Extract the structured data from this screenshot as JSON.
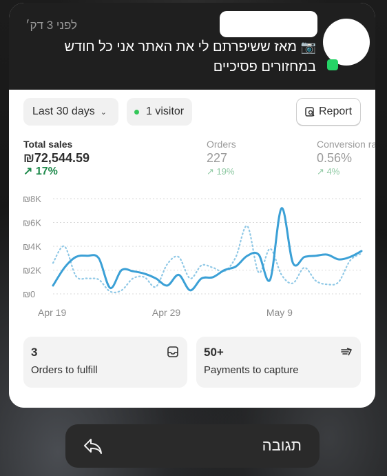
{
  "notification": {
    "time": "לפני 3 דק׳",
    "message_line1": "מאז ששיפרתם לי את האתר אני כל חודש",
    "message_line2": "במחזורים פסיכיים",
    "camera_emoji": "📷",
    "app_badge_icon": "whatsapp-icon"
  },
  "dashboard": {
    "date_range": "Last 30 days",
    "visitors": "1 visitor",
    "report_label": "Report",
    "metrics": {
      "total_sales": {
        "label": "Total sales",
        "value": "₪72,544.59",
        "change": "↗ 17%"
      },
      "orders": {
        "label": "Orders",
        "value": "227",
        "change": "↗ 19%"
      },
      "conversion": {
        "label": "Conversion rate",
        "value": "0.56%",
        "change": "↗ 4%"
      }
    },
    "cards": [
      {
        "value": "3",
        "label": "Orders to fulfill",
        "icon": "inbox-icon"
      },
      {
        "value": "50+",
        "label": "Payments to capture",
        "icon": "payment-icon"
      }
    ],
    "colors": {
      "accent": "#3ba0d6",
      "positive": "#1f8a4c",
      "visitor_dot": "#34c759"
    }
  },
  "chart_data": {
    "type": "line",
    "ylim": [
      0,
      8000
    ],
    "y_ticks": [
      "₪0",
      "₪2K",
      "₪4K",
      "₪6K",
      "₪8K"
    ],
    "x_ticks": [
      {
        "label": "Apr 19",
        "index": 0
      },
      {
        "label": "Apr 29",
        "index": 10
      },
      {
        "label": "May 9",
        "index": 20
      }
    ],
    "series": [
      {
        "values": [
          700,
          2200,
          3100,
          3200,
          3000,
          500,
          2000,
          1900,
          1700,
          1300,
          700,
          1600,
          300,
          1300,
          1400,
          2000,
          2300,
          3200,
          3300,
          1200,
          7200,
          2600,
          3100,
          3200,
          3300,
          2900,
          3100,
          3600
        ],
        "style": "solid"
      },
      {
        "values": [
          2600,
          4000,
          1500,
          1300,
          1200,
          200,
          300,
          1300,
          1400,
          600,
          2500,
          3100,
          1300,
          2400,
          2200,
          1900,
          3100,
          5700,
          1800,
          3800,
          1600,
          900,
          2200,
          1100,
          800,
          1000,
          2800,
          3400
        ],
        "style": "dotted"
      }
    ]
  },
  "reply": {
    "label": "תגובה"
  }
}
